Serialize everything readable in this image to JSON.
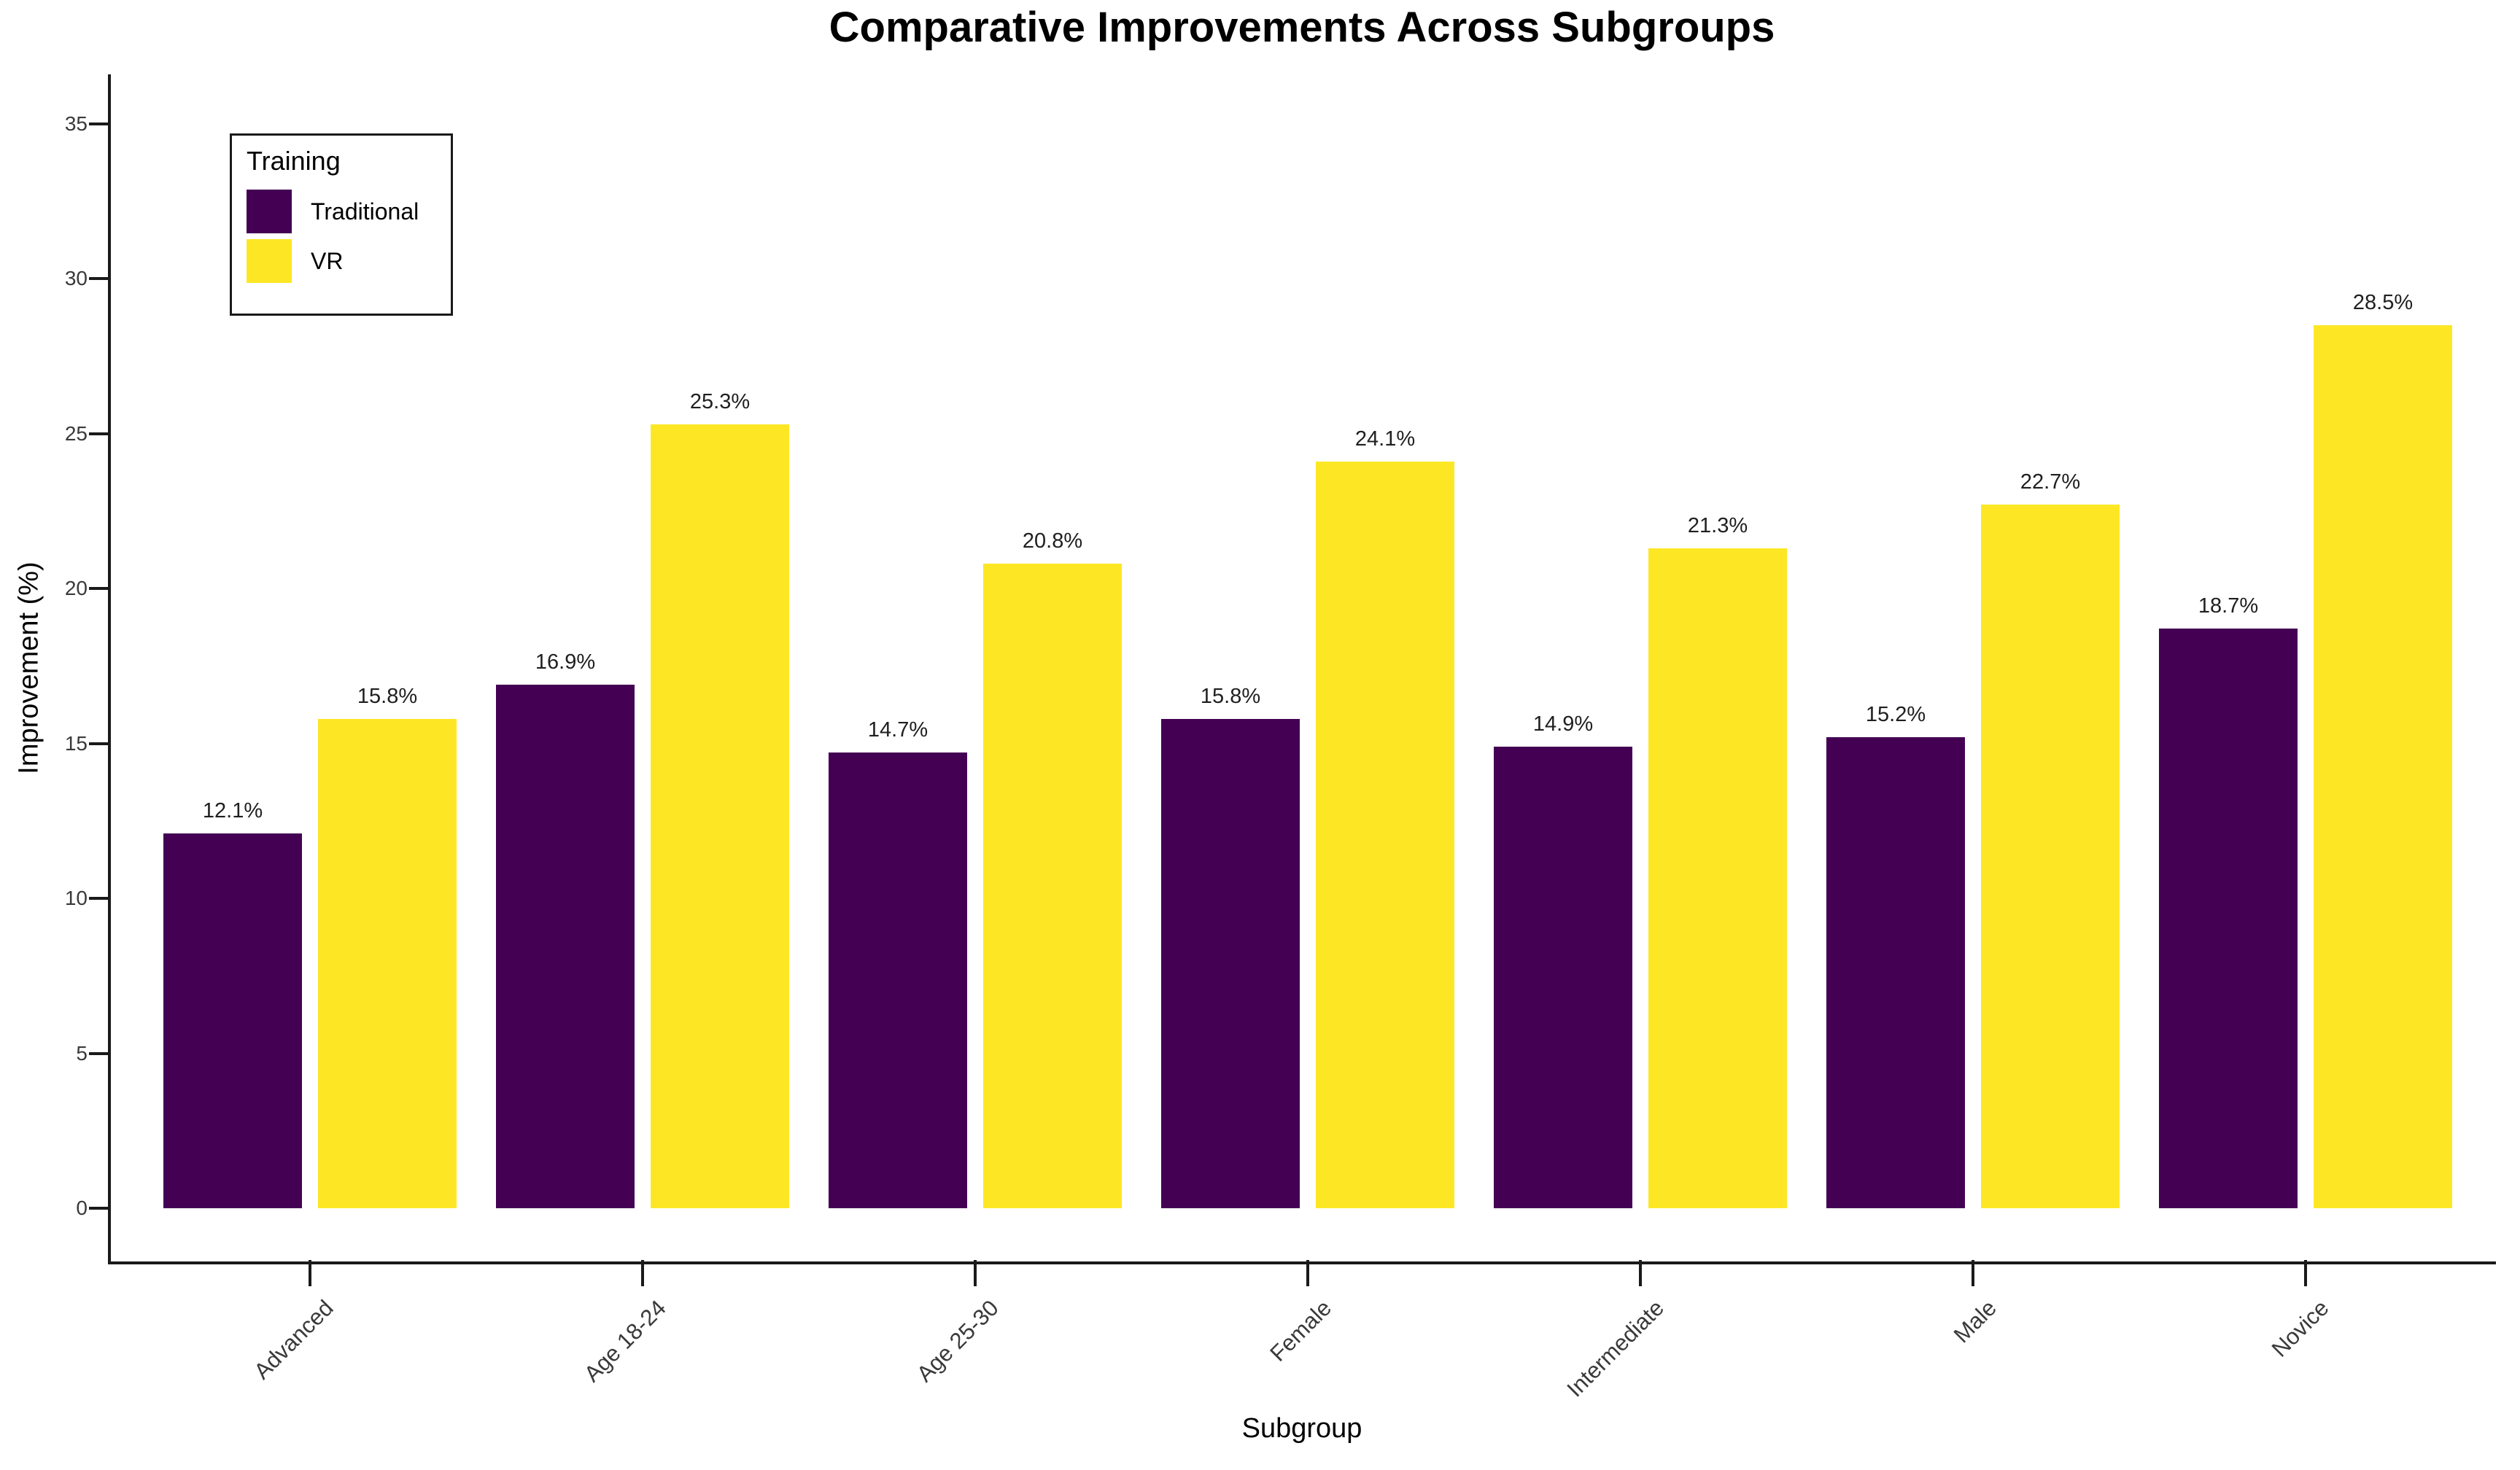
{
  "chart_data": {
    "type": "bar",
    "title": "Comparative Improvements Across Subgroups",
    "xlabel": "Subgroup",
    "ylabel": "Improvement (%)",
    "categories": [
      "Advanced",
      "Age 18-24",
      "Age 25-30",
      "Female",
      "Intermediate",
      "Male",
      "Novice"
    ],
    "series": [
      {
        "name": "Traditional",
        "color": "#440154",
        "values": [
          12.1,
          16.9,
          14.7,
          15.8,
          14.9,
          15.2,
          18.7
        ],
        "value_labels": [
          "12.1%",
          "16.9%",
          "14.7%",
          "15.8%",
          "14.9%",
          "15.2%",
          "18.7%"
        ]
      },
      {
        "name": "VR",
        "color": "#FDE725",
        "values": [
          15.8,
          25.3,
          20.8,
          24.1,
          21.3,
          22.7,
          28.5
        ],
        "value_labels": [
          "15.8%",
          "25.3%",
          "20.8%",
          "24.1%",
          "21.3%",
          "22.7%",
          "28.5%"
        ]
      }
    ],
    "yticks": [
      0,
      5,
      10,
      15,
      20,
      25,
      30,
      35
    ],
    "ylim": [
      -1.7,
      36.6
    ],
    "grid": false,
    "legend": {
      "title": "Training",
      "position": "upper left",
      "entries": [
        {
          "label": "Traditional",
          "color": "#440154"
        },
        {
          "label": "VR",
          "color": "#FDE725"
        }
      ]
    },
    "spine_color": "#1a1a1a",
    "tick_label_color": "#3a3a3a",
    "value_label_color": "#1f1f1f"
  }
}
